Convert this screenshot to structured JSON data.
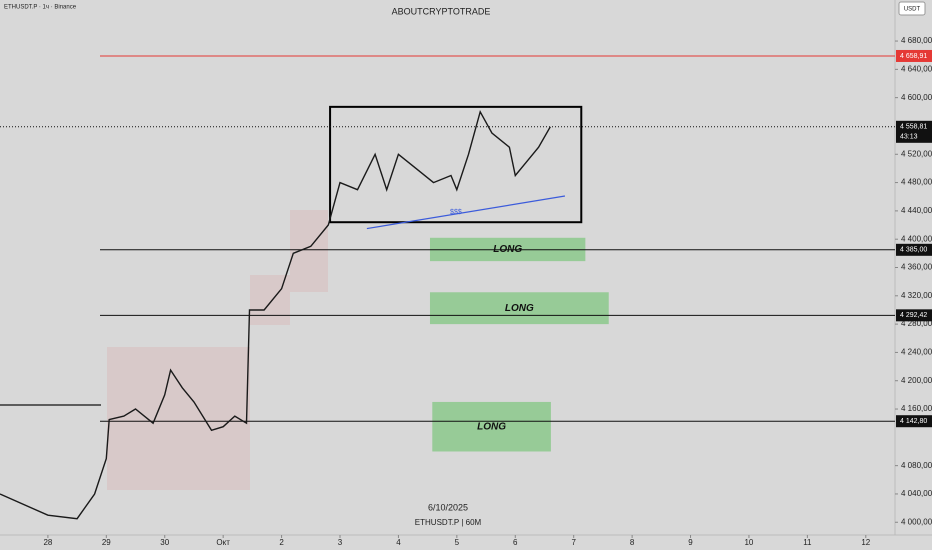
{
  "chart_data": {
    "type": "line",
    "symbol": "ETHUSDT.P · 1ч · Binance",
    "title": "ABOUTCRYPTOTRADE",
    "currency": "USDT",
    "footer_date": "6/10/2025",
    "footer_symbol": "ETHUSDT.P | 60M",
    "color": "#1a1a1a",
    "grid": false,
    "xlim": [
      -0.82,
      14.5
    ],
    "ylim": [
      3982,
      4738
    ],
    "xticks": [
      {
        "value": 0,
        "label": "28"
      },
      {
        "value": 1,
        "label": "29"
      },
      {
        "value": 2,
        "label": "30"
      },
      {
        "value": 3,
        "label": "Окт"
      },
      {
        "value": 4,
        "label": "2"
      },
      {
        "value": 5,
        "label": "3"
      },
      {
        "value": 6,
        "label": "4"
      },
      {
        "value": 7,
        "label": "5"
      },
      {
        "value": 8,
        "label": "6"
      },
      {
        "value": 9,
        "label": "7"
      },
      {
        "value": 10,
        "label": "8"
      },
      {
        "value": 11,
        "label": "9"
      },
      {
        "value": 12,
        "label": "10"
      },
      {
        "value": 13,
        "label": "11"
      },
      {
        "value": 14,
        "label": "12"
      }
    ],
    "yticks": [
      {
        "value": 4000,
        "label": "4 000,00"
      },
      {
        "value": 4040,
        "label": "4 040,00"
      },
      {
        "value": 4080,
        "label": "4 080,00"
      },
      {
        "value": 4160,
        "label": "4 160,00"
      },
      {
        "value": 4200,
        "label": "4 200,00"
      },
      {
        "value": 4240,
        "label": "4 240,00"
      },
      {
        "value": 4280,
        "label": "4 280,00"
      },
      {
        "value": 4320,
        "label": "4 320,00"
      },
      {
        "value": 4360,
        "label": "4 360,00"
      },
      {
        "value": 4400,
        "label": "4 400,00"
      },
      {
        "value": 4440,
        "label": "4 440,00"
      },
      {
        "value": 4480,
        "label": "4 480,00"
      },
      {
        "value": 4520,
        "label": "4 520,00"
      },
      {
        "value": 4600,
        "label": "4 600,00"
      },
      {
        "value": 4640,
        "label": "4 640,00"
      },
      {
        "value": 4680,
        "label": "4 680,00"
      }
    ],
    "x": [
      -0.82,
      0,
      0.5,
      0.8,
      1,
      1.05,
      1.3,
      1.5,
      1.8,
      2,
      2.1,
      2.3,
      2.5,
      2.8,
      3,
      3.2,
      3.4,
      3.45,
      3.7,
      4,
      4.2,
      4.5,
      4.8,
      5,
      5.3,
      5.6,
      5.8,
      6,
      6.3,
      6.6,
      6.9,
      7,
      7.2,
      7.4,
      7.6,
      7.9,
      8,
      8.2,
      8.4,
      8.6
    ],
    "values": [
      4040,
      4010,
      4005,
      4040,
      4090,
      4145,
      4150,
      4160,
      4140,
      4180,
      4215,
      4190,
      4170,
      4130,
      4135,
      4150,
      4140,
      4300,
      4300,
      4330,
      4380,
      4390,
      4420,
      4480,
      4470,
      4520,
      4470,
      4520,
      4500,
      4480,
      4490,
      4470,
      4520,
      4580,
      4550,
      4530,
      4490,
      4510,
      4530,
      4558.81
    ],
    "price_levels": [
      {
        "value": 4658.91,
        "label": "4 658,91",
        "color": "#e53935",
        "style": "solid"
      },
      {
        "value": 4558.81,
        "label": "4 558,81",
        "countdown": "43:13",
        "color": "#111111",
        "style": "dotted"
      },
      {
        "value": 4385,
        "label": "4 385,00",
        "color": "#111111",
        "style": "solid"
      },
      {
        "value": 4292.42,
        "label": "4 292,42",
        "color": "#111111",
        "style": "solid"
      },
      {
        "value": 4142.8,
        "label": "4 142,80",
        "color": "#111111",
        "style": "solid"
      }
    ],
    "annotations": [
      {
        "type": "rect",
        "xlim": [
          4.83,
          9.13
        ],
        "ylim": [
          4424,
          4587
        ],
        "color": "#000000"
      },
      {
        "type": "trendline",
        "x": [
          5.46,
          8.85
        ],
        "y": [
          4415,
          4461
        ],
        "label": "$$$",
        "color": "#3b5bdb"
      },
      {
        "type": "zone",
        "label": "LONG",
        "xlim": [
          6.54,
          9.2
        ],
        "ylim": [
          4369,
          4402
        ],
        "color": "#8cc98c"
      },
      {
        "type": "zone",
        "label": "LONG",
        "xlim": [
          6.54,
          9.6
        ],
        "ylim": [
          4280,
          4325
        ],
        "color": "#8cc98c"
      },
      {
        "type": "zone",
        "label": "LONG",
        "xlim": [
          6.58,
          8.61
        ],
        "ylim": [
          4100,
          4170
        ],
        "color": "#8cc98c"
      }
    ]
  }
}
